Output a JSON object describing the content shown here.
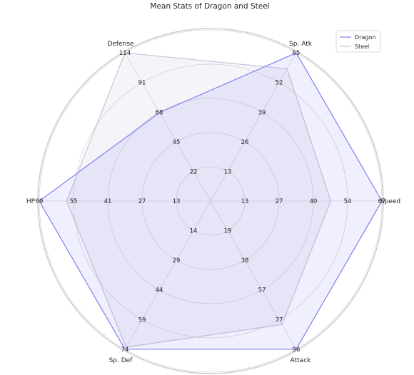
{
  "chart_data": {
    "type": "radar",
    "title": "Mean Stats of Dragon and Steel",
    "axes": [
      {
        "name": "Speed",
        "ticks": [
          "13",
          "27",
          "40",
          "54",
          "67"
        ],
        "max": 67
      },
      {
        "name": "Sp. Atk",
        "ticks": [
          "13",
          "26",
          "39",
          "52",
          "65"
        ],
        "max": 65
      },
      {
        "name": "Defense",
        "ticks": [
          "22",
          "45",
          "68",
          "91",
          "114"
        ],
        "max": 114
      },
      {
        "name": "HP",
        "ticks": [
          "13",
          "27",
          "41",
          "55",
          "69"
        ],
        "max": 69
      },
      {
        "name": "Sp. Def",
        "ticks": [
          "14",
          "29",
          "44",
          "59",
          "74"
        ],
        "max": 74
      },
      {
        "name": "Attack",
        "ticks": [
          "19",
          "38",
          "57",
          "77",
          "96"
        ],
        "max": 96
      }
    ],
    "series": [
      {
        "name": "Dragon",
        "values": [
          67,
          65,
          68,
          69,
          74,
          96
        ],
        "color": "#8080f0"
      },
      {
        "name": "Steel",
        "values": [
          47,
          58,
          114,
          58,
          73,
          80
        ],
        "color": "#c8c4d8"
      }
    ],
    "legend_position": "top-right",
    "grid": true
  }
}
